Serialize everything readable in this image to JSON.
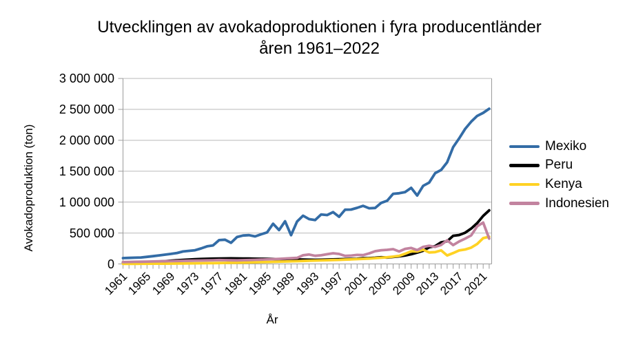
{
  "title": {
    "line1": "Utvecklingen av avokadoproduktionen i fyra producentländer",
    "line2": "åren 1961–2022"
  },
  "colors": {
    "background": "#ffffff",
    "gridline": "#b9b9b9",
    "axis": "#9b9b9b",
    "text": "#000000"
  },
  "chart_data": {
    "type": "line",
    "title": "Utvecklingen av avokadoproduktionen i fyra producentländer åren 1961–2022",
    "xlabel": "År",
    "ylabel": "Avokadoproduktion (ton)",
    "ylim": [
      0,
      3000000
    ],
    "grid": "horizontal",
    "legend_position": "right",
    "y_ticks": [
      {
        "value": 0,
        "label": "0"
      },
      {
        "value": 500000,
        "label": "500 000"
      },
      {
        "value": 1000000,
        "label": "1 000 000"
      },
      {
        "value": 1500000,
        "label": "1 500 000"
      },
      {
        "value": 2000000,
        "label": "2 000 000"
      },
      {
        "value": 2500000,
        "label": "2 500 000"
      },
      {
        "value": 3000000,
        "label": "3 000 000"
      }
    ],
    "x_tick_years": [
      1961,
      1965,
      1969,
      1973,
      1977,
      1981,
      1985,
      1989,
      1993,
      1997,
      2001,
      2005,
      2009,
      2013,
      2017,
      2021
    ],
    "x": [
      1961,
      1962,
      1963,
      1964,
      1965,
      1966,
      1967,
      1968,
      1969,
      1970,
      1971,
      1972,
      1973,
      1974,
      1975,
      1976,
      1977,
      1978,
      1979,
      1980,
      1981,
      1982,
      1983,
      1984,
      1985,
      1986,
      1987,
      1988,
      1989,
      1990,
      1991,
      1992,
      1993,
      1994,
      1995,
      1996,
      1997,
      1998,
      1999,
      2000,
      2001,
      2002,
      2003,
      2004,
      2005,
      2006,
      2007,
      2008,
      2009,
      2010,
      2011,
      2012,
      2013,
      2014,
      2015,
      2016,
      2017,
      2018,
      2019,
      2020,
      2021,
      2022
    ],
    "series": [
      {
        "name": "Mexiko",
        "color": "#336CA6",
        "values": [
          95000,
          98000,
          101000,
          105000,
          115000,
          126000,
          138000,
          150000,
          163000,
          177000,
          202000,
          212000,
          222000,
          250000,
          285000,
          300000,
          385000,
          392000,
          342000,
          435000,
          460000,
          465000,
          445000,
          480000,
          510000,
          650000,
          548000,
          690000,
          465000,
          686000,
          780000,
          725000,
          709000,
          800000,
          790000,
          838000,
          762000,
          877000,
          879000,
          907000,
          940000,
          901000,
          905000,
          987000,
          1022000,
          1134000,
          1143000,
          1162000,
          1231000,
          1107000,
          1264000,
          1316000,
          1468000,
          1521000,
          1644000,
          1889000,
          2030000,
          2185000,
          2301000,
          2394000,
          2443000,
          2510000
        ]
      },
      {
        "name": "Peru",
        "color": "#000000",
        "values": [
          24000,
          26000,
          28000,
          30000,
          33000,
          36000,
          40000,
          45000,
          52000,
          60000,
          66000,
          71000,
          76000,
          80000,
          84000,
          86000,
          88000,
          89000,
          90000,
          89000,
          88000,
          87000,
          85000,
          83000,
          82000,
          80000,
          78000,
          76000,
          75000,
          72000,
          70000,
          68000,
          67000,
          68000,
          70000,
          73000,
          76000,
          79000,
          81000,
          84000,
          93000,
          95000,
          100000,
          108000,
          103000,
          113000,
          122000,
          136000,
          157000,
          184000,
          214000,
          269000,
          288000,
          349000,
          367000,
          455000,
          467000,
          505000,
          572000,
          660000,
          777000,
          866000
        ]
      },
      {
        "name": "Kenya",
        "color": "#FFD224",
        "values": [
          2000,
          2300,
          2600,
          3000,
          3400,
          3900,
          4400,
          5000,
          5700,
          6500,
          7400,
          8400,
          9500,
          10700,
          12000,
          13400,
          15000,
          16700,
          18500,
          20400,
          22400,
          24500,
          26700,
          29000,
          31400,
          33900,
          36500,
          39200,
          42000,
          45000,
          48000,
          51000,
          54000,
          57000,
          60000,
          63000,
          66000,
          70000,
          74000,
          78000,
          82000,
          87000,
          93000,
          100000,
          108000,
          118000,
          130000,
          165000,
          205000,
          202000,
          230000,
          186000,
          192000,
          219000,
          137000,
          176000,
          218000,
          234000,
          264000,
          323000,
          417000,
          440000
        ]
      },
      {
        "name": "Indonesien",
        "color": "#C2839F",
        "values": [
          30000,
          32000,
          34000,
          36000,
          38000,
          40000,
          42000,
          44000,
          46000,
          48000,
          50000,
          52000,
          54000,
          56000,
          58000,
          60000,
          63000,
          61000,
          59000,
          58000,
          61000,
          64000,
          67000,
          70000,
          74000,
          78000,
          82000,
          87000,
          92000,
          98000,
          140000,
          153000,
          131000,
          140000,
          157000,
          172000,
          161000,
          130000,
          135000,
          146000,
          142000,
          170000,
          206000,
          222000,
          228000,
          239000,
          202000,
          244000,
          258000,
          224000,
          276000,
          294000,
          276000,
          307000,
          383000,
          305000,
          363000,
          410000,
          462000,
          609000,
          669000,
          410000
        ]
      }
    ]
  }
}
